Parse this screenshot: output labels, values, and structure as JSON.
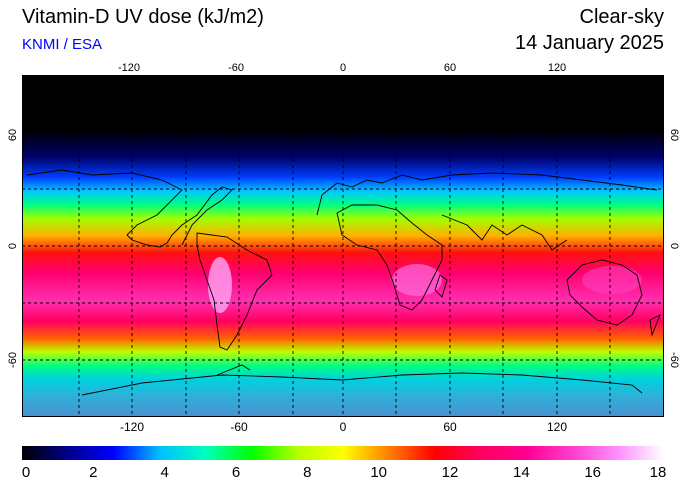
{
  "header": {
    "title": "Vitamin-D UV dose (kJ/m2)",
    "source": "KNMI / ESA",
    "mode": "Clear-sky",
    "date": "14 January 2025"
  },
  "map": {
    "projection": "equirectangular",
    "lon_range": [
      -180,
      180
    ],
    "lat_range": [
      -90,
      90
    ],
    "grid_step": 30,
    "lon_tick_labels": [
      "-120",
      "-60",
      "0",
      "60",
      "120"
    ],
    "lon_tick_values": [
      -120,
      -60,
      0,
      60,
      120
    ],
    "lat_tick_labels": [
      "60",
      "0",
      "-60"
    ],
    "lat_tick_values": [
      60,
      0,
      -60
    ]
  },
  "colorbar": {
    "min": 0,
    "max": 18,
    "labels": [
      "0",
      "2",
      "4",
      "6",
      "8",
      "10",
      "12",
      "14",
      "16",
      "18"
    ],
    "colors": [
      "#000000",
      "#00008b",
      "#0000ff",
      "#00bfff",
      "#00ffbf",
      "#00ff00",
      "#b4ff00",
      "#ffff00",
      "#ff8000",
      "#ff0000",
      "#ff0060",
      "#ff0090",
      "#ff3cd0",
      "#ff90ff",
      "#ffffff"
    ]
  }
}
